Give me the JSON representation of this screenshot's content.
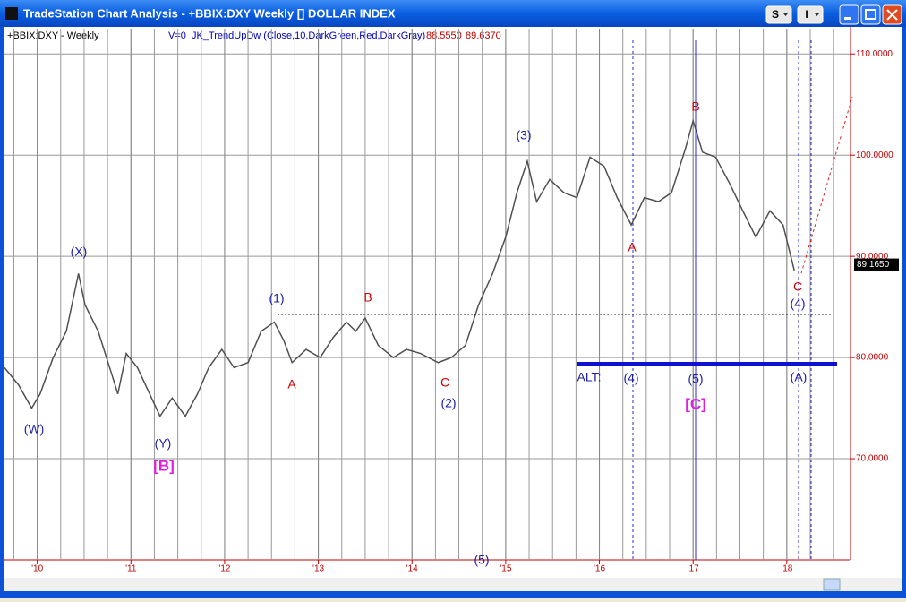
{
  "window": {
    "title": "TradeStation Chart Analysis - +BBIX:DXY Weekly [] DOLLAR INDEX",
    "buttons": [
      "S",
      "I"
    ]
  },
  "chart_data": {
    "type": "line",
    "symbol": "+BBIX:DXY - Weekly",
    "indicator": "V=0  JK_TrendUpDw (Close,10,DarkGreen,Red,DarkGray)",
    "indicator_values": [
      {
        "value": 88.555,
        "label": "88.5550"
      },
      {
        "value": 89.637,
        "label": "89.6370"
      }
    ],
    "last_price": {
      "value": 89.165,
      "label": "89.1650"
    },
    "x": [
      2009.65,
      2009.8,
      2009.94,
      2010.03,
      2010.17,
      2010.31,
      2010.44,
      2010.51,
      2010.65,
      2010.8,
      2010.86,
      2010.95,
      2011.07,
      2011.2,
      2011.31,
      2011.44,
      2011.58,
      2011.71,
      2011.83,
      2011.97,
      2012.1,
      2012.25,
      2012.39,
      2012.53,
      2012.63,
      2012.72,
      2012.87,
      2013.02,
      2013.16,
      2013.3,
      2013.4,
      2013.5,
      2013.64,
      2013.8,
      2013.94,
      2014.09,
      2014.28,
      2014.42,
      2014.57,
      2014.71,
      2014.86,
      2015,
      2015.12,
      2015.23,
      2015.33,
      2015.47,
      2015.62,
      2015.76,
      2015.9,
      2016.05,
      2016.19,
      2016.34,
      2016.48,
      2016.63,
      2016.77,
      2016.92,
      2017,
      2017.1,
      2017.24,
      2017.39,
      2017.53,
      2017.67,
      2017.82,
      2017.96,
      2018.08
    ],
    "series": [
      {
        "name": "+BBIX:DXY",
        "color": "#505050",
        "values": [
          79,
          77.3,
          75,
          76.4,
          80,
          82.6,
          88.3,
          85.2,
          82.6,
          78.2,
          76.4,
          80.4,
          79,
          76.4,
          74.2,
          76,
          74.2,
          76.4,
          79,
          80.8,
          79,
          79.5,
          82.6,
          83.5,
          81.7,
          79.5,
          80.8,
          80,
          82,
          83.5,
          82.6,
          83.9,
          81.2,
          80,
          80.8,
          80.4,
          79.5,
          80,
          81.2,
          85.2,
          88.3,
          91.9,
          96.3,
          99.4,
          95.4,
          97.6,
          96.3,
          95.8,
          99.8,
          98.9,
          95.8,
          93.1,
          95.8,
          95.4,
          96.3,
          100.7,
          103.4,
          100.3,
          99.8,
          97.2,
          94.5,
          91.9,
          94.5,
          93.1,
          88.6
        ]
      }
    ],
    "xlim": [
      2009.65,
      2018.68
    ],
    "xticks": [
      {
        "value": 2010,
        "label": "'10"
      },
      {
        "value": 2011,
        "label": "'11"
      },
      {
        "value": 2012,
        "label": "'12"
      },
      {
        "value": 2013,
        "label": "'13"
      },
      {
        "value": 2014,
        "label": "'14"
      },
      {
        "value": 2015,
        "label": "'15"
      },
      {
        "value": 2016,
        "label": "'16"
      },
      {
        "value": 2017,
        "label": "'17"
      },
      {
        "value": 2018,
        "label": "'18"
      }
    ],
    "ylim": [
      60,
      112.5
    ],
    "yticks": [
      {
        "value": 70,
        "label": "70.0000"
      },
      {
        "value": 80,
        "label": "80.0000"
      },
      {
        "value": 90,
        "label": "90.0000"
      },
      {
        "value": 100,
        "label": "100.0000"
      },
      {
        "value": 110,
        "label": "110.0000"
      }
    ],
    "grid": true,
    "annotations": [
      "(W)",
      "(X)",
      "(Y)",
      "[B]",
      "(1)",
      "A",
      "B",
      "C",
      "(2)",
      "(3)",
      "A",
      "B",
      "(4)",
      "(5)",
      "[C]",
      "ALT:",
      "C",
      "(4)",
      "(A)",
      "(5)"
    ]
  }
}
